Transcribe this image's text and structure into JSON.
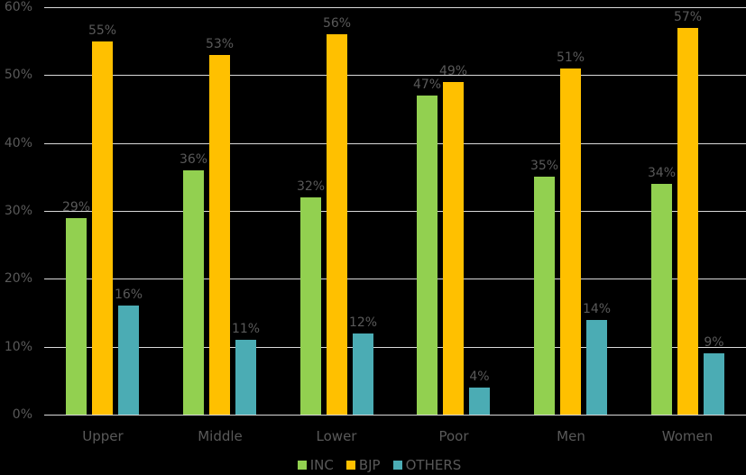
{
  "chart_data": {
    "type": "bar",
    "title": "",
    "xlabel": "",
    "ylabel": "",
    "ylim": [
      0,
      60
    ],
    "yticks": [
      "0%",
      "10%",
      "20%",
      "30%",
      "40%",
      "50%",
      "60%"
    ],
    "grid": true,
    "legend_position": "bottom",
    "categories": [
      "Upper",
      "Middle",
      "Lower",
      "Poor",
      "Men",
      "Women"
    ],
    "series": [
      {
        "name": "INC",
        "color": "#92d050",
        "values": [
          29,
          36,
          32,
          47,
          35,
          34
        ],
        "labels": [
          "29%",
          "36%",
          "32%",
          "47%",
          "35%",
          "34%"
        ]
      },
      {
        "name": "BJP",
        "color": "#ffc000",
        "values": [
          55,
          53,
          56,
          49,
          51,
          57
        ],
        "labels": [
          "55%",
          "53%",
          "56%",
          "49%",
          "51%",
          "57%"
        ]
      },
      {
        "name": "OTHERS",
        "color": "#4bacb4",
        "values": [
          16,
          11,
          12,
          4,
          14,
          9
        ],
        "labels": [
          "16%",
          "11%",
          "12%",
          "4%",
          "14%",
          "9%"
        ]
      }
    ]
  },
  "colors": {
    "background": "#000000",
    "text": "#595959",
    "gridline": "#d9d9d9"
  }
}
